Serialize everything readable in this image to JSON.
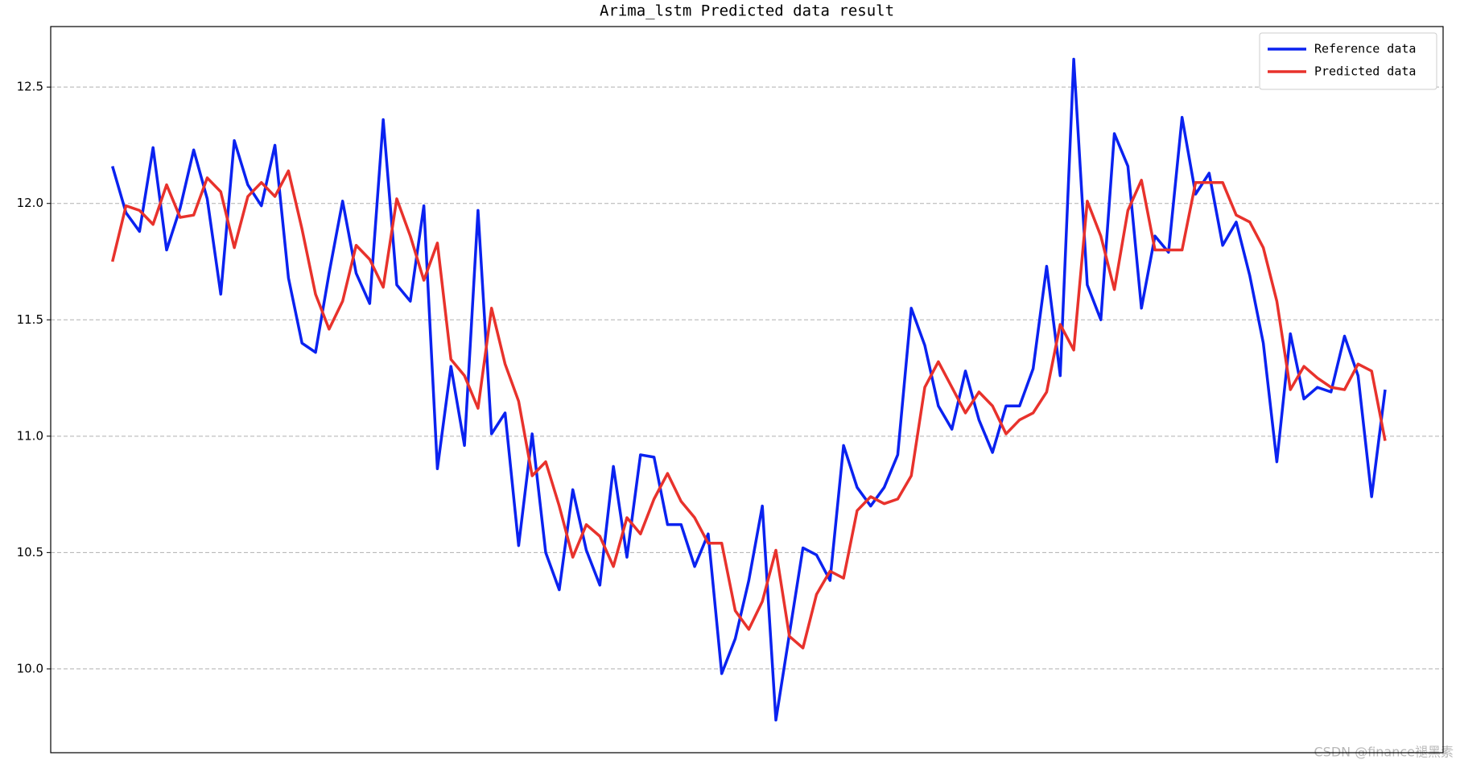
{
  "chart_data": {
    "type": "line",
    "title": "Arima_lstm Predicted data result",
    "watermark": "CSDN @finance褪黑素",
    "categories": [
      null,
      null,
      null,
      null,
      null,
      null,
      null,
      null,
      null,
      null,
      null,
      null,
      null,
      null,
      null,
      null,
      null,
      null,
      null,
      null,
      null,
      null,
      null,
      null,
      null,
      null,
      null,
      null,
      null,
      null,
      null,
      null,
      null,
      null,
      null,
      null,
      null,
      null,
      null,
      null,
      null,
      null,
      null,
      null,
      null,
      null,
      null,
      null,
      null,
      null,
      null,
      null,
      null,
      null,
      null,
      null,
      null,
      null,
      null,
      null,
      null,
      null,
      null,
      null,
      null,
      null,
      null,
      null,
      null,
      null,
      null,
      null,
      null,
      null,
      null,
      null,
      null,
      null,
      null,
      null,
      null,
      null,
      null,
      null,
      null,
      null,
      null,
      null,
      null,
      null,
      null,
      null,
      null,
      null,
      null
    ],
    "series": [
      {
        "name": "Reference data",
        "color": "#0a22f0",
        "values": [
          12.16,
          11.96,
          11.88,
          12.24,
          11.8,
          11.98,
          12.23,
          12.02,
          11.61,
          12.27,
          12.08,
          11.99,
          12.25,
          11.68,
          11.4,
          11.36,
          11.7,
          12.01,
          11.7,
          11.57,
          12.36,
          11.65,
          11.58,
          11.99,
          10.86,
          11.3,
          10.96,
          11.97,
          11.01,
          11.1,
          10.53,
          11.01,
          10.5,
          10.34,
          10.77,
          10.51,
          10.36,
          10.87,
          10.48,
          10.92,
          10.91,
          10.62,
          10.62,
          10.44,
          10.58,
          9.98,
          10.13,
          10.38,
          10.7,
          9.78,
          10.15,
          10.52,
          10.49,
          10.38,
          10.96,
          10.78,
          10.7,
          10.78,
          10.92,
          11.55,
          11.39,
          11.13,
          11.03,
          11.28,
          11.07,
          10.93,
          11.13,
          11.13,
          11.29,
          11.73,
          11.26,
          12.62,
          11.65,
          11.5,
          12.3,
          12.16,
          11.55,
          11.86,
          11.79,
          12.37,
          12.04,
          12.13,
          11.82,
          11.92,
          11.69,
          11.4,
          10.89,
          11.44,
          11.16,
          11.21,
          11.19,
          11.43,
          11.26,
          10.74,
          11.2
        ]
      },
      {
        "name": "Predicted data",
        "color": "#e8322c",
        "values": [
          11.75,
          11.99,
          11.97,
          11.91,
          12.08,
          11.94,
          11.95,
          12.11,
          12.05,
          11.81,
          12.03,
          12.09,
          12.03,
          12.14,
          11.89,
          11.61,
          11.46,
          11.58,
          11.82,
          11.76,
          11.64,
          12.02,
          11.86,
          11.67,
          11.83,
          11.33,
          11.26,
          11.12,
          11.55,
          11.31,
          11.15,
          10.83,
          10.89,
          10.7,
          10.48,
          10.62,
          10.57,
          10.44,
          10.65,
          10.58,
          10.73,
          10.84,
          10.72,
          10.65,
          10.54,
          10.54,
          10.25,
          10.17,
          10.29,
          10.51,
          10.14,
          10.09,
          10.32,
          10.42,
          10.39,
          10.68,
          10.74,
          10.71,
          10.73,
          10.83,
          11.21,
          11.32,
          11.21,
          11.1,
          11.19,
          11.13,
          11.01,
          11.07,
          11.1,
          11.19,
          11.48,
          11.37,
          12.01,
          11.86,
          11.63,
          11.97,
          12.1,
          11.8,
          11.8,
          11.8,
          12.09,
          12.09,
          12.09,
          11.95,
          11.92,
          11.81,
          11.58,
          11.2,
          11.3,
          11.25,
          11.21,
          11.2,
          11.31,
          11.28,
          10.98
        ]
      }
    ],
    "ylim": [
      9.64,
      12.76
    ],
    "yticks": [
      {
        "value": 10,
        "label": "10.0"
      },
      10.5,
      {
        "value": 11,
        "label": "11.0"
      },
      11.5,
      {
        "value": 12,
        "label": "12.0"
      },
      12.5
    ],
    "grid": true,
    "legend": "upper right"
  }
}
